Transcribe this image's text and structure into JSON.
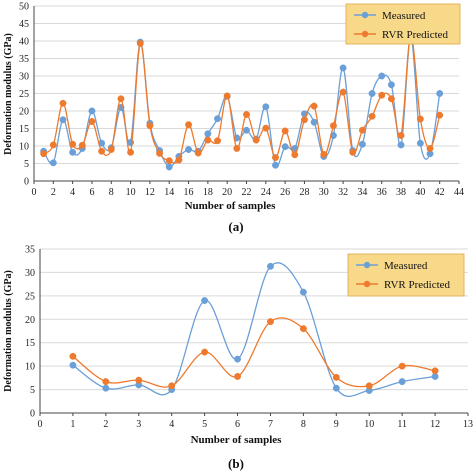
{
  "colors": {
    "measured": "#6a9fd8",
    "predicted": "#ee7a2e",
    "legend_bg": "#f8d98a",
    "legend_border": "#e0b45c",
    "grid": "#d9d9d9",
    "axis": "#444444"
  },
  "chart_data": [
    {
      "id": "a",
      "type": "line",
      "panel_label": "(a)",
      "xlabel": "Number of samples",
      "ylabel": "Deformation modulus (GPa)",
      "xlim": [
        0,
        44
      ],
      "ylim": [
        0,
        50
      ],
      "xticks": [
        0,
        2,
        4,
        6,
        8,
        10,
        12,
        14,
        16,
        18,
        20,
        22,
        24,
        26,
        28,
        30,
        32,
        34,
        36,
        38,
        40,
        42,
        44
      ],
      "yticks": [
        0,
        5,
        10,
        15,
        20,
        25,
        30,
        35,
        40,
        45,
        50
      ],
      "grid": true,
      "legend_position": "top-right",
      "series": [
        {
          "name": "Measured",
          "color_key": "measured",
          "x": [
            1,
            2,
            3,
            4,
            5,
            6,
            7,
            8,
            9,
            10,
            11,
            12,
            13,
            14,
            15,
            16,
            17,
            18,
            19,
            20,
            21,
            22,
            23,
            24,
            25,
            26,
            27,
            28,
            29,
            30,
            31,
            32,
            33,
            34,
            35,
            36,
            37,
            38,
            39,
            40,
            41,
            42
          ],
          "y": [
            8.5,
            5.2,
            17.5,
            8.2,
            9.3,
            20,
            10.8,
            9.5,
            21,
            11,
            39.7,
            16.5,
            8.7,
            4,
            7,
            9,
            8.5,
            13.5,
            17.8,
            24.2,
            12.3,
            14.5,
            12,
            21.2,
            4.5,
            9.8,
            9.3,
            19.2,
            16.8,
            7,
            13,
            32.3,
            8.7,
            10.5,
            25,
            30,
            27.5,
            10.3,
            41,
            10.8,
            7.8,
            25
          ]
        },
        {
          "name": "RVR Predicted",
          "color_key": "predicted",
          "x": [
            1,
            2,
            3,
            4,
            5,
            6,
            7,
            8,
            9,
            10,
            11,
            12,
            13,
            14,
            15,
            16,
            17,
            18,
            19,
            20,
            21,
            22,
            23,
            24,
            25,
            26,
            27,
            28,
            29,
            30,
            31,
            32,
            33,
            34,
            35,
            36,
            37,
            38,
            39,
            40,
            41,
            42
          ],
          "y": [
            7.8,
            10.3,
            22.2,
            10.5,
            10.2,
            17,
            8.5,
            9,
            23.5,
            8.2,
            39.3,
            15.8,
            7.9,
            5.8,
            6,
            16.1,
            8,
            11.7,
            11.5,
            24.3,
            9.3,
            19,
            11.7,
            15.1,
            6.7,
            14.3,
            7.5,
            17.5,
            21.4,
            7.6,
            15.8,
            25.4,
            8.2,
            14.5,
            18.5,
            24.5,
            23.5,
            13,
            41.5,
            17.7,
            9.3,
            18.8
          ]
        }
      ]
    },
    {
      "id": "b",
      "type": "line",
      "panel_label": "(b)",
      "xlabel": "Number of samples",
      "ylabel": "Deformation modulus (GPa)",
      "xlim": [
        0,
        13
      ],
      "ylim": [
        0,
        35
      ],
      "xticks": [
        0,
        1,
        2,
        3,
        4,
        5,
        6,
        7,
        8,
        9,
        10,
        11,
        12,
        13
      ],
      "yticks": [
        0,
        5,
        10,
        15,
        20,
        25,
        30,
        35
      ],
      "grid": true,
      "legend_position": "top-right",
      "series": [
        {
          "name": "Measured",
          "color_key": "measured",
          "x": [
            1,
            2,
            3,
            4,
            5,
            6,
            7,
            8,
            9,
            10,
            11,
            12
          ],
          "y": [
            10.2,
            5.3,
            6,
            5,
            24,
            11.5,
            31.3,
            25.8,
            5.3,
            4.8,
            6.7,
            7.8
          ]
        },
        {
          "name": "RVR Predicted",
          "color_key": "predicted",
          "x": [
            1,
            2,
            3,
            4,
            5,
            6,
            7,
            8,
            9,
            10,
            11,
            12
          ],
          "y": [
            12.1,
            6.7,
            7,
            5.8,
            13,
            7.8,
            19.5,
            18,
            7.6,
            5.8,
            10,
            9
          ]
        }
      ]
    }
  ]
}
